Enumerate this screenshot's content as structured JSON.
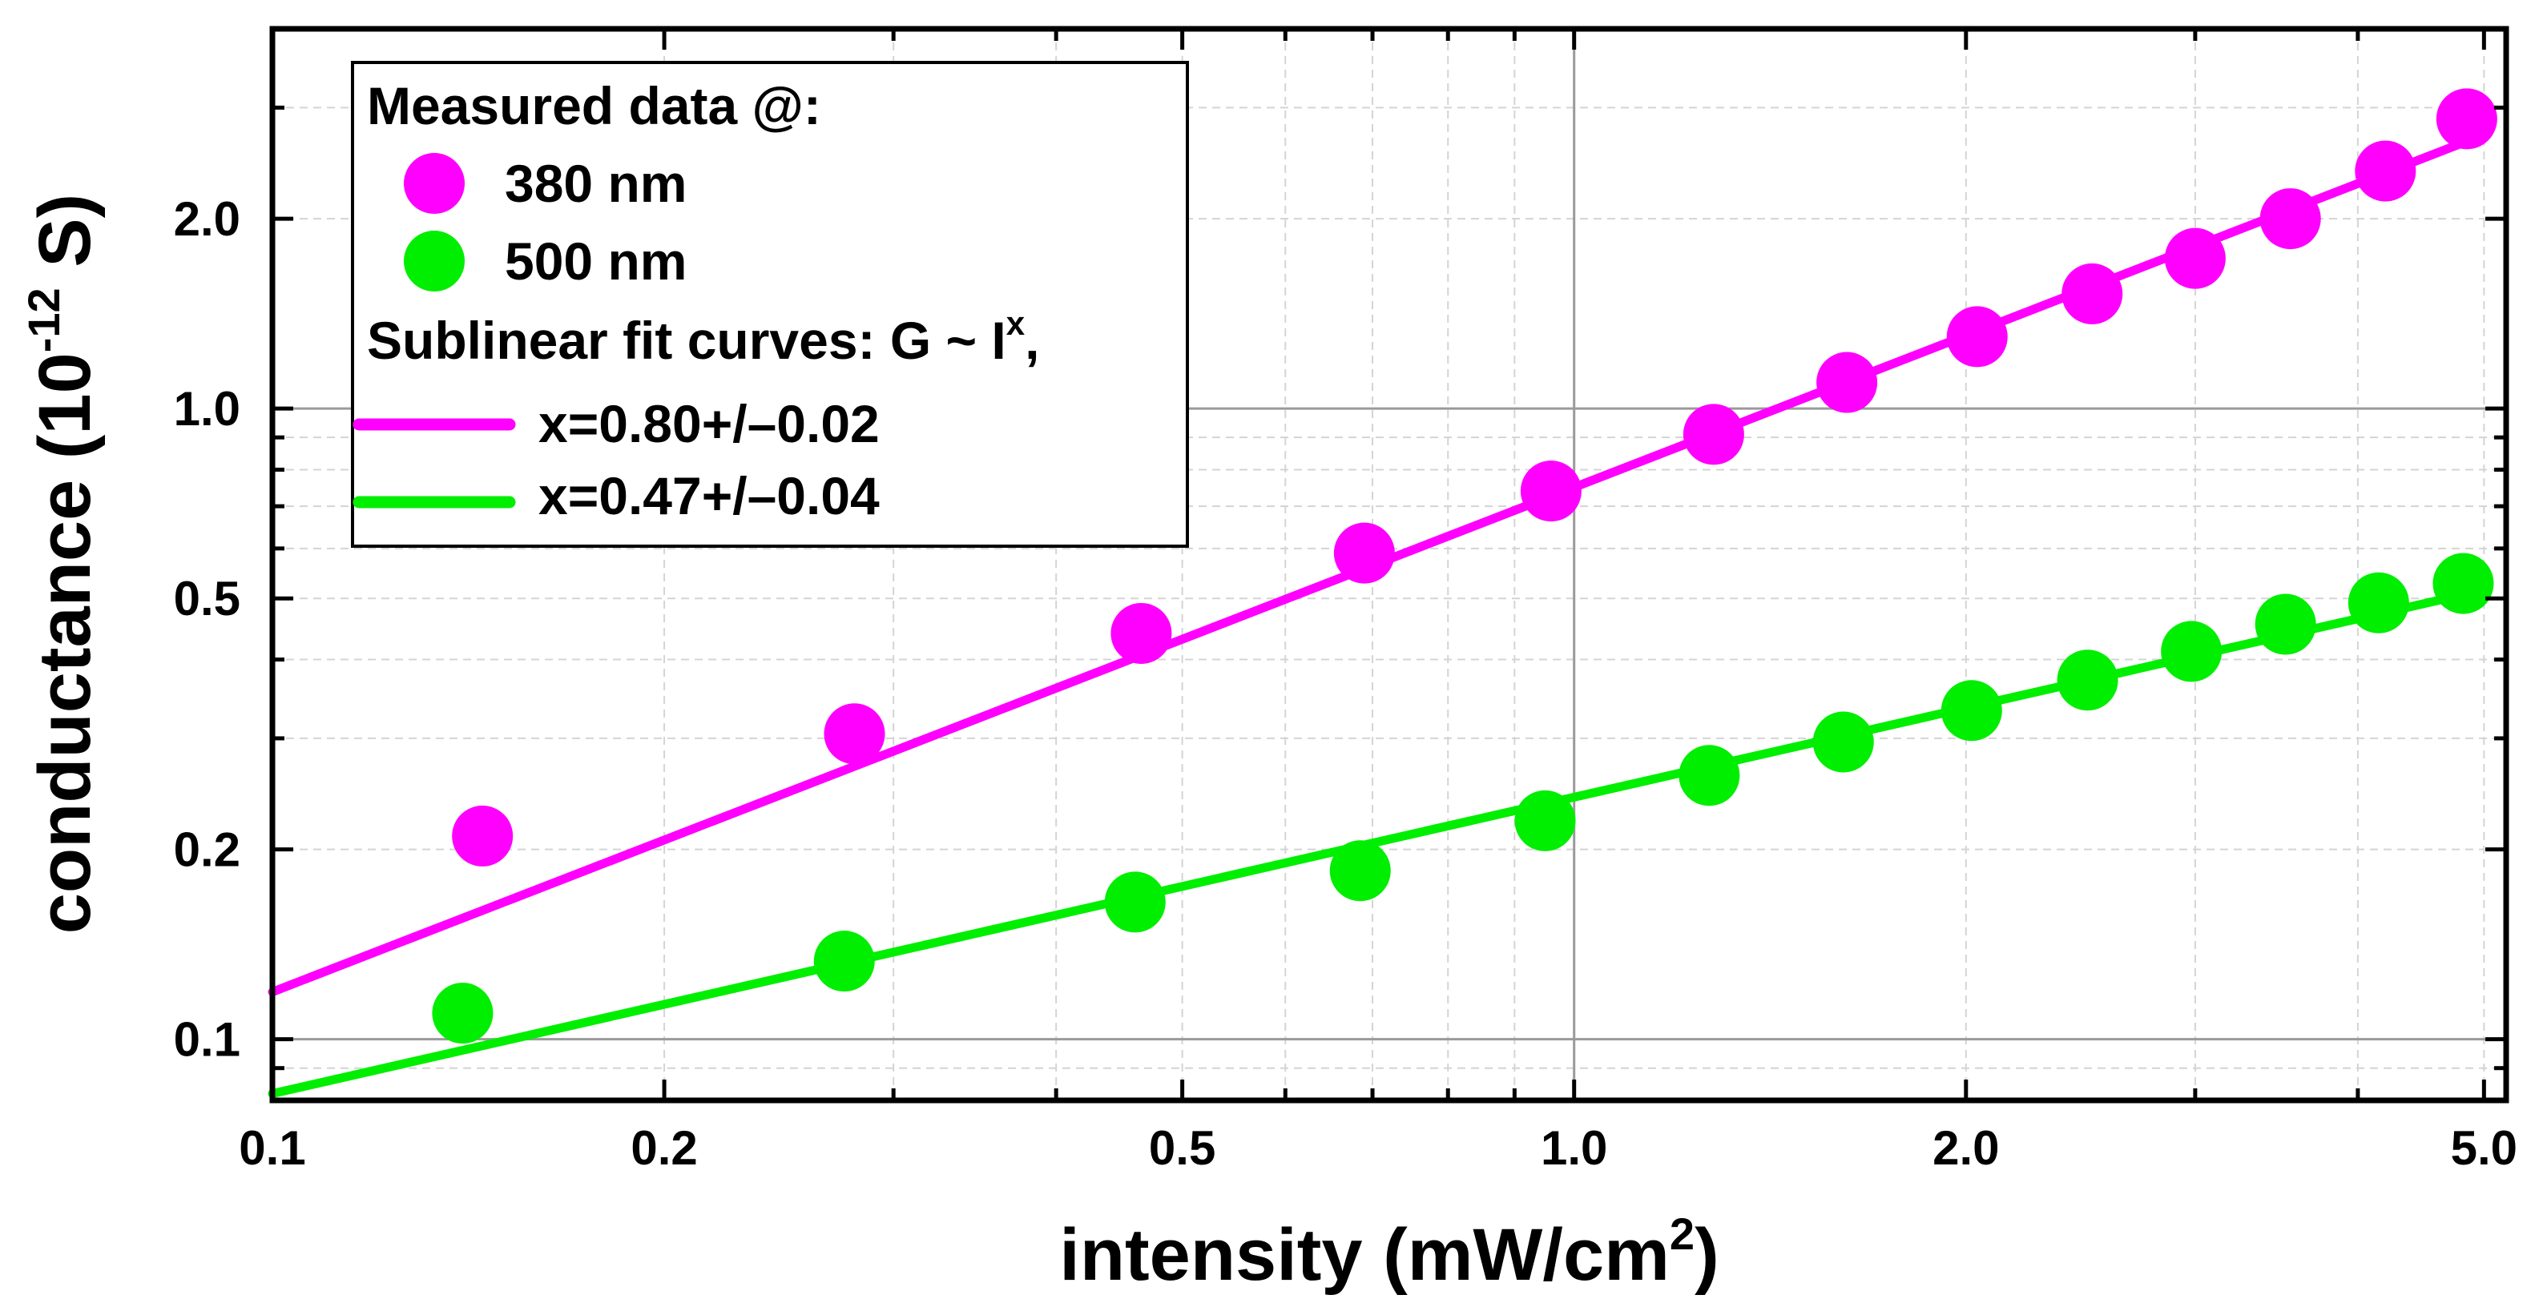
{
  "chart_data": {
    "type": "scatter",
    "xscale": "log",
    "yscale": "log",
    "xlim": [
      0.1,
      5.2
    ],
    "ylim": [
      0.08,
      4.0
    ],
    "x_ticks": [
      {
        "value": 0.1,
        "label": "0.1"
      },
      {
        "value": 0.2,
        "label": "0.2"
      },
      {
        "value": 0.5,
        "label": "0.5"
      },
      {
        "value": 1.0,
        "label": "1.0"
      },
      {
        "value": 2.0,
        "label": "2.0"
      },
      {
        "value": 5.0,
        "label": "5.0"
      }
    ],
    "y_ticks": [
      {
        "value": 0.1,
        "label": "0.1"
      },
      {
        "value": 0.2,
        "label": "0.2"
      },
      {
        "value": 0.5,
        "label": "0.5"
      },
      {
        "value": 1.0,
        "label": "1.0"
      },
      {
        "value": 2.0,
        "label": "2.0"
      }
    ],
    "xlabel": {
      "main": "intensity (mW/cm",
      "sup": "2",
      "end": ")"
    },
    "ylabel": {
      "main": "conductance (10",
      "sup": "-12",
      "end": " S)"
    },
    "grid": true,
    "legend": {
      "placement": "top-left",
      "title": "Measured data @:",
      "fit_title": {
        "main": "Sublinear fit curves: G ~ I",
        "sup": "x",
        "end": ","
      }
    },
    "series": [
      {
        "name": "380 nm",
        "color": "#ff00ff",
        "x": [
          0.145,
          0.28,
          0.465,
          0.69,
          0.96,
          1.28,
          1.62,
          2.04,
          2.5,
          3.0,
          3.55,
          4.2,
          4.85
        ],
        "y": [
          0.21,
          0.305,
          0.44,
          0.59,
          0.74,
          0.91,
          1.1,
          1.3,
          1.52,
          1.73,
          2.0,
          2.38,
          2.88
        ]
      },
      {
        "name": "500 nm",
        "color": "#00ee00",
        "x": [
          0.14,
          0.275,
          0.46,
          0.685,
          0.95,
          1.27,
          1.61,
          2.02,
          2.48,
          2.98,
          3.52,
          4.15,
          4.82
        ],
        "y": [
          0.11,
          0.133,
          0.165,
          0.185,
          0.222,
          0.262,
          0.296,
          0.332,
          0.371,
          0.412,
          0.455,
          0.492,
          0.528
        ]
      }
    ],
    "fits": [
      {
        "name": "x=0.80+/–0.02",
        "color": "#ff00ff",
        "exponent": 0.8,
        "prefactor": 0.75,
        "x_range": [
          0.1,
          4.85
        ]
      },
      {
        "name": "x=0.47+/–0.04",
        "color": "#00ee00",
        "exponent": 0.47,
        "prefactor": 0.242,
        "x_range": [
          0.1,
          4.85
        ]
      }
    ]
  }
}
